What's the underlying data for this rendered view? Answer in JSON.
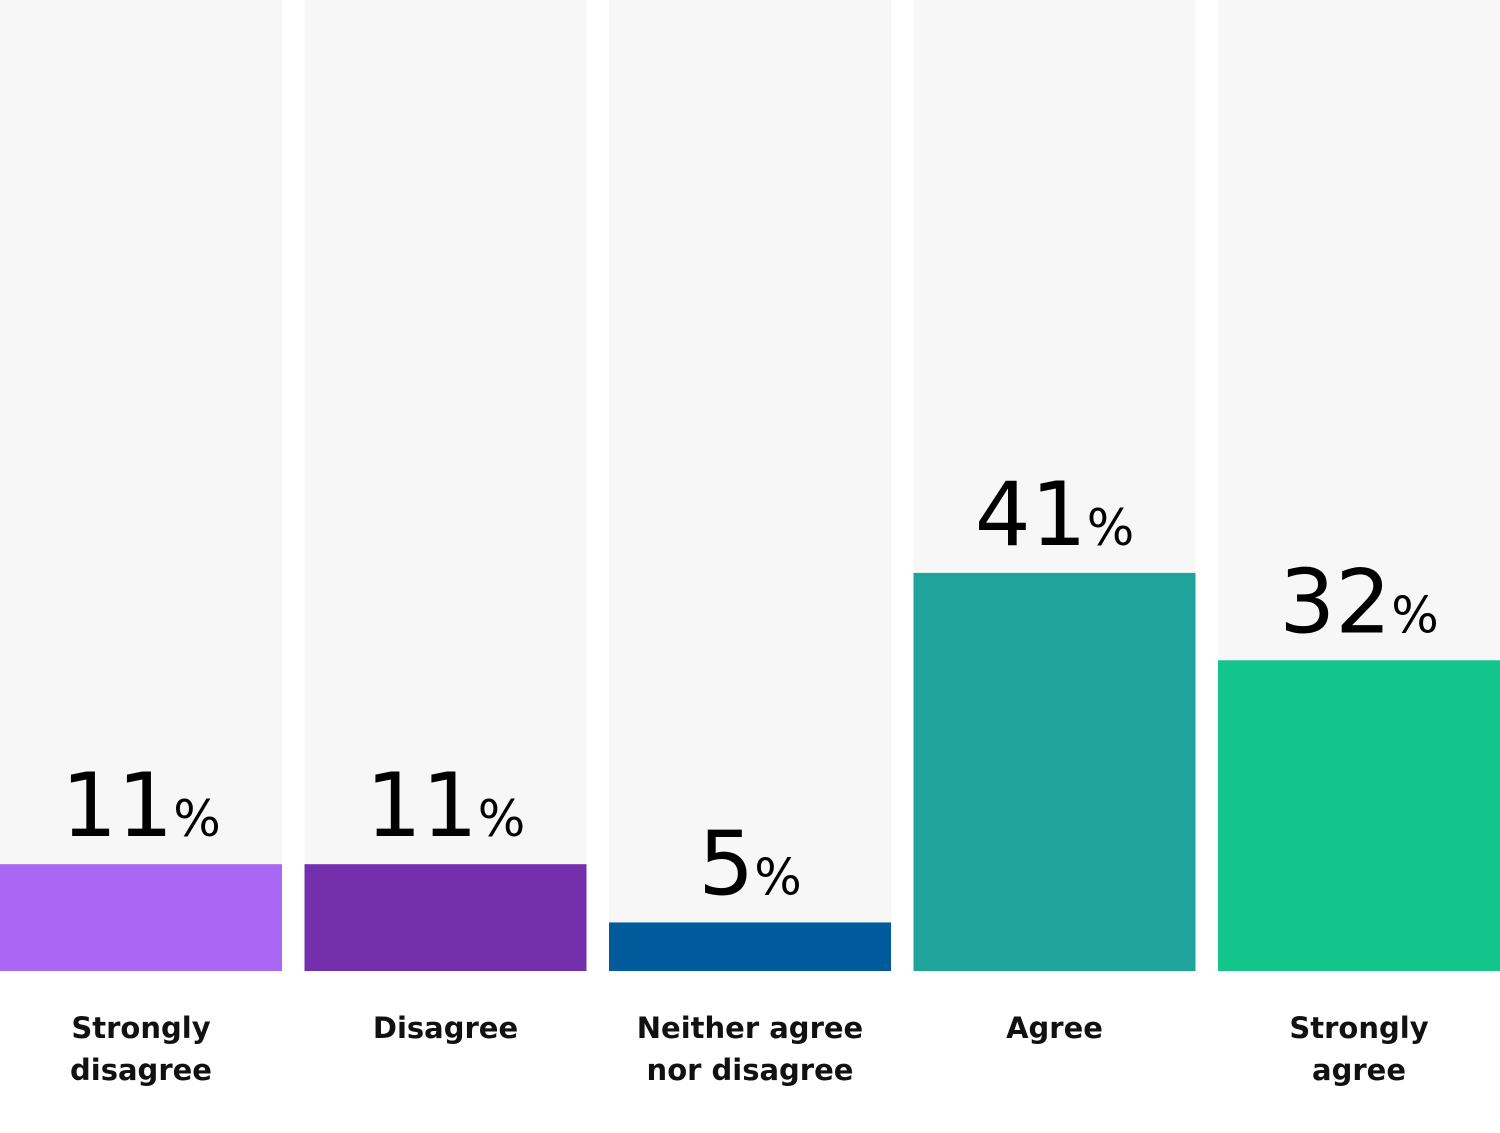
{
  "chart_data": {
    "type": "bar",
    "categories": [
      [
        "Strongly",
        "disagree"
      ],
      [
        "Disagree"
      ],
      [
        "Neither agree",
        "nor disagree"
      ],
      [
        "Agree"
      ],
      [
        "Strongly",
        "agree"
      ]
    ],
    "values": [
      11,
      11,
      5,
      41,
      32
    ],
    "value_suffix": "%",
    "colors": [
      "#A967F3",
      "#742FAC",
      "#005A9C",
      "#20A39B",
      "#13C58A"
    ],
    "track_color": "#F7F7F7",
    "ylim": [
      0,
      100
    ],
    "title": "",
    "xlabel": "",
    "ylabel": "",
    "grid": false,
    "legend": "none"
  }
}
